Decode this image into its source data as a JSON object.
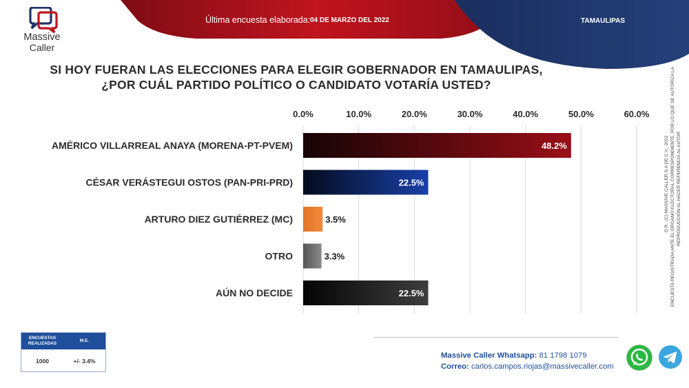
{
  "header": {
    "survey_label": "Última encuesta elaborada:",
    "survey_date": "04 DE MARZO DEL 2022",
    "region": "TAMAULIPAS",
    "colors": {
      "red": "#b81220",
      "navy": "#1f3567"
    }
  },
  "logo": {
    "line1": "Massive",
    "line2": "Caller"
  },
  "question": {
    "line1": "SI HOY FUERAN LAS ELECCIONES PARA ELEGIR GOBERNADOR EN TAMAULIPAS,",
    "line2": "¿POR CUÁL PARTIDO POLÍTICO O CANDIDATO VOTARÍA USTED?"
  },
  "chart_data": {
    "type": "bar",
    "orientation": "horizontal",
    "xlim": [
      0,
      60
    ],
    "ticks": [
      "0.0%",
      "10.0%",
      "20.0%",
      "30.0%",
      "40.0%",
      "50.0%",
      "60.0%"
    ],
    "tick_values": [
      0,
      10,
      20,
      30,
      40,
      50,
      60
    ],
    "categories": [
      "AMÉRICO VILLARREAL ANAYA (MORENA-PT-PVEM)",
      "CÉSAR VERÁSTEGUI OSTOS (PAN-PRI-PRD)",
      "ARTURO DIEZ GUTIÉRREZ (MC)",
      "OTRO",
      "AÚN NO DECIDE"
    ],
    "values": [
      48.2,
      22.5,
      3.5,
      3.3,
      22.5
    ],
    "value_labels": [
      "48.2%",
      "22.5%",
      "3.5%",
      "3.3%",
      "22.5%"
    ],
    "colors": [
      "#8a0a10",
      "#13308a",
      "#e87a2e",
      "#6b6b6b",
      "#2a2a2a"
    ],
    "grid": true
  },
  "side_text": {
    "line1": "D.R., (C) MASSIVE CALLER S.A DE C.V., 2022",
    "line2": "ENCUESTA REGISTRADA ANTE EL ÓRGANO ELECTORAL CORRESPONDIENTE, POR LO QUE SE AUTORIZA LA",
    "line3": "REPRODUCCIÓN AL HACER REFERENCIA AL AUTOR"
  },
  "stats": {
    "header1": "ENCUESTAS REALIZADAS",
    "header2": "M.E.",
    "surveys": "1000",
    "margin": "+/- 3.4%"
  },
  "footer": {
    "whatsapp_label": "Massive Caller Whatsapp:",
    "whatsapp_number": "81 1798 1079",
    "email_label": "Correo:",
    "email": "carlos.campos.riojas@massivecaller.com"
  }
}
